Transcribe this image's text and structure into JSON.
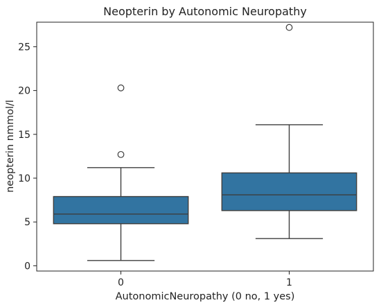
{
  "chart_data": {
    "type": "box",
    "title": "Neopterin by Autonomic Neuropathy",
    "xlabel": "AutonomicNeuropathy (0 no, 1 yes)",
    "ylabel": "neopterin nmmol/l",
    "ylim": [
      -0.6,
      27.8
    ],
    "yticks": [
      0,
      5,
      10,
      15,
      20,
      25
    ],
    "categories": [
      "0",
      "1"
    ],
    "boxes": [
      {
        "category": "0",
        "whisker_low": 0.6,
        "q1": 4.8,
        "median": 5.9,
        "q3": 7.9,
        "whisker_high": 11.2,
        "outliers": [
          12.7,
          20.3
        ]
      },
      {
        "category": "1",
        "whisker_low": 3.1,
        "q1": 6.3,
        "median": 8.1,
        "q3": 10.6,
        "whisker_high": 16.1,
        "outliers": [
          27.2
        ]
      }
    ],
    "grid": false,
    "colors": {
      "box_fill": "#3274a1",
      "line": "#3d3d3d",
      "axis": "#222222"
    }
  }
}
